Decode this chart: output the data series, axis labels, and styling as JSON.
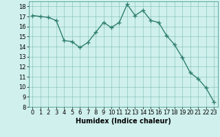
{
  "x": [
    0,
    1,
    2,
    3,
    4,
    5,
    6,
    7,
    8,
    9,
    10,
    11,
    12,
    13,
    14,
    15,
    16,
    17,
    18,
    19,
    20,
    21,
    22,
    23
  ],
  "y": [
    17.1,
    17.0,
    16.9,
    16.6,
    14.6,
    14.5,
    13.9,
    14.4,
    15.4,
    16.4,
    15.9,
    16.4,
    18.2,
    17.1,
    17.6,
    16.6,
    16.4,
    15.1,
    14.2,
    12.9,
    11.4,
    10.8,
    9.9,
    8.5
  ],
  "line_color": "#2e7d6e",
  "marker": "+",
  "markersize": 4,
  "linewidth": 1.0,
  "markeredgewidth": 1.0,
  "bg_color": "#cff0ed",
  "grid_color": "#2e8b7a",
  "xlabel": "Humidex (Indice chaleur)",
  "xlabel_fontsize": 7,
  "tick_fontsize": 6,
  "ylim": [
    8,
    18.5
  ],
  "xlim": [
    -0.5,
    23.5
  ],
  "yticks": [
    8,
    9,
    10,
    11,
    12,
    13,
    14,
    15,
    16,
    17,
    18
  ],
  "xticks": [
    0,
    1,
    2,
    3,
    4,
    5,
    6,
    7,
    8,
    9,
    10,
    11,
    12,
    13,
    14,
    15,
    16,
    17,
    18,
    19,
    20,
    21,
    22,
    23
  ]
}
